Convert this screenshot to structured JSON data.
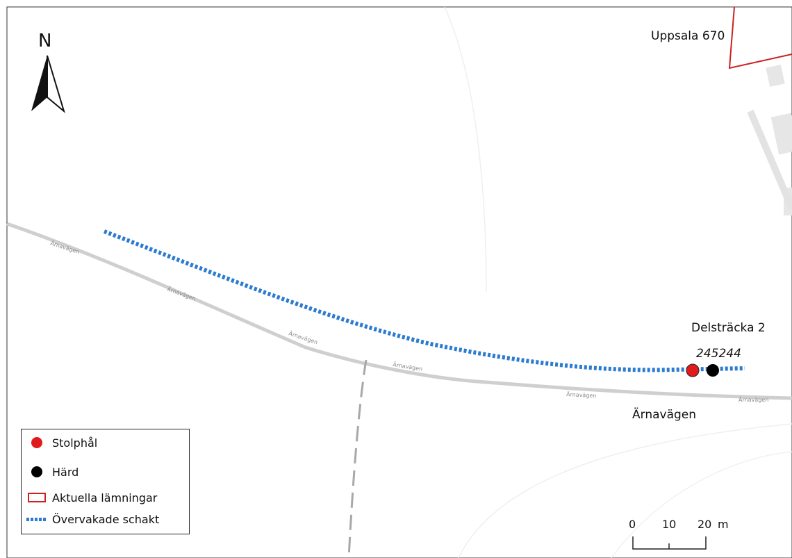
{
  "map": {
    "labels": {
      "site": "Uppsala 670",
      "section": "Delsträcka 2",
      "feature_id": "245244",
      "road": "Ärnavägen",
      "road_small": "Ärnavägen"
    },
    "north_arrow": {
      "letter": "N",
      "icon": "north-arrow-icon"
    },
    "legend": {
      "items": [
        {
          "label": "Stolphål",
          "symbol": "red-dot",
          "color": "#e11b1b"
        },
        {
          "label": "Härd",
          "symbol": "black-dot",
          "color": "#000000"
        },
        {
          "label": "Aktuella lämningar",
          "symbol": "red-outline-rect",
          "color": "#cc2222"
        },
        {
          "label": "Övervakade schakt",
          "symbol": "blue-dashed-line",
          "color": "#2b7bd0"
        }
      ]
    },
    "scale_bar": {
      "ticks": [
        "0",
        "10",
        "20"
      ],
      "unit": "m"
    },
    "colors": {
      "trench": "#2b7bd0",
      "road": "#cfcfcf",
      "remains_outline": "#cc2222",
      "stolphal": "#e11b1b",
      "hard": "#000000"
    }
  }
}
